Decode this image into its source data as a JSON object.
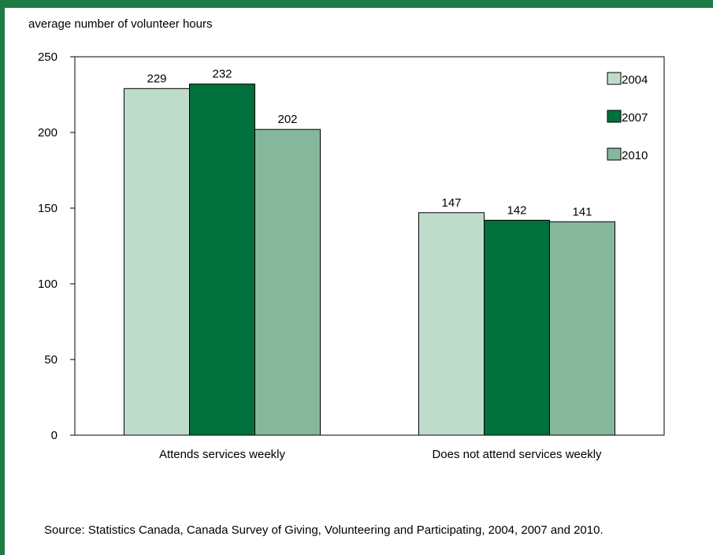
{
  "chart_data": {
    "type": "bar",
    "ylabel": "average number of volunteer hours",
    "categories": [
      "Attends services weekly",
      "Does not attend services weekly"
    ],
    "series": [
      {
        "name": "2004",
        "values": [
          229,
          147
        ],
        "color": "#bfdccb"
      },
      {
        "name": "2007",
        "values": [
          232,
          142
        ],
        "color": "#00703c"
      },
      {
        "name": "2010",
        "values": [
          202,
          141
        ],
        "color": "#86b79d"
      }
    ],
    "ylim": [
      0,
      250
    ],
    "yticks": [
      0,
      50,
      100,
      150,
      200,
      250
    ],
    "legend_position": "top-right",
    "grid": false
  },
  "source": "Source:  Statistics Canada, Canada Survey of Giving, Volunteering and Participating, 2004, 2007 and 2010.",
  "colors": {
    "frame": "#1e7a45"
  }
}
